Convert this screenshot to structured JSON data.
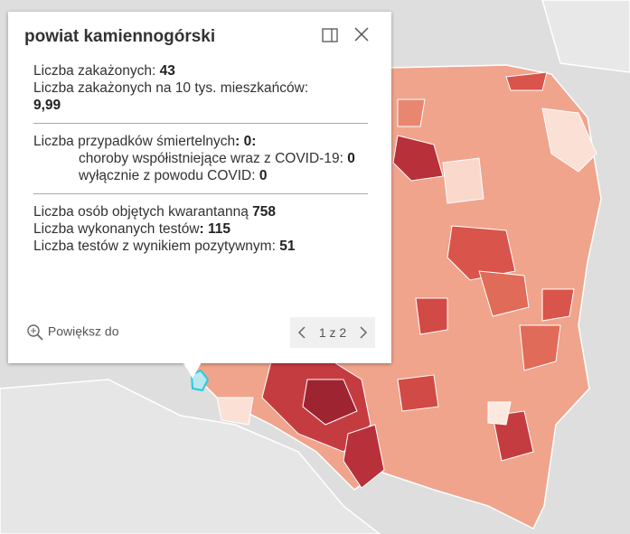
{
  "popup": {
    "title": "powiat kamiennogórski",
    "fields": [
      {
        "label": "Liczba zakażonych:",
        "value": "43"
      },
      {
        "label": "Liczba zakażonych na 10 tys. mieszkańców:",
        "value": "9,99"
      },
      {
        "label": "Liczba przypadków śmiertelnych",
        "value": ": 0:"
      },
      {
        "label": "choroby współistniejące wraz z COVID-19:",
        "value": "0"
      },
      {
        "label": "wyłącznie z powodu COVID:",
        "value": "0"
      },
      {
        "label": "Liczba osób objętych kwarantanną",
        "value": "758"
      },
      {
        "label": "Liczba wykonanych testów",
        "value": ": 115"
      },
      {
        "label": "Liczba testów z wynikiem pozytywnym:",
        "value": "51"
      }
    ],
    "zoom_label": "Powiększ do",
    "pager": "1 z 2"
  }
}
